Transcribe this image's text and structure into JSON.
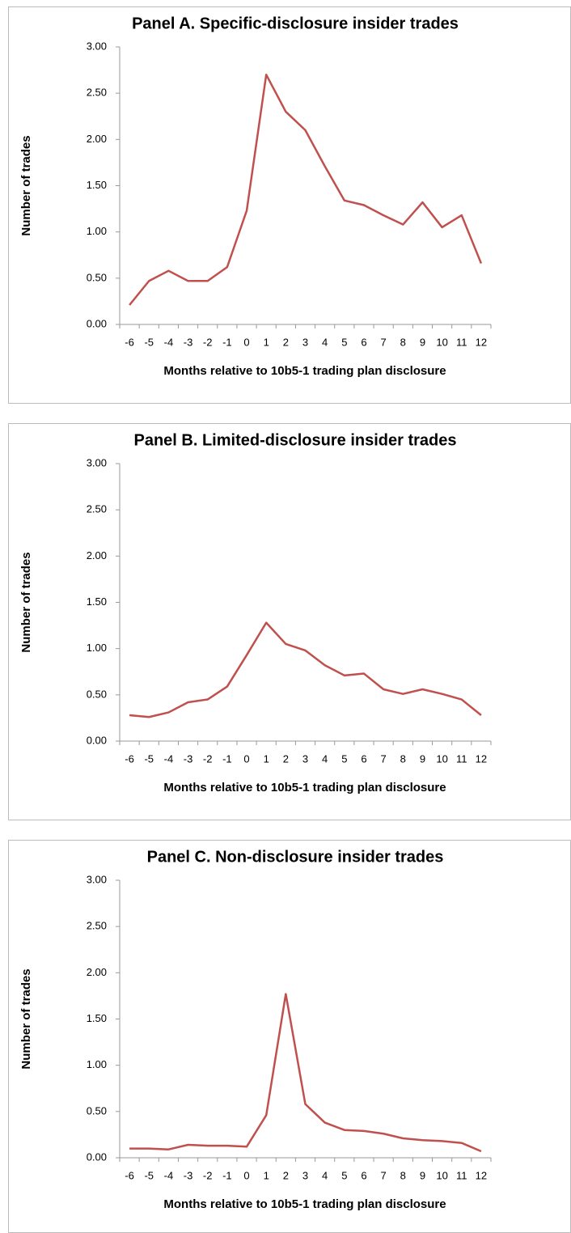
{
  "chart_data": [
    {
      "type": "line",
      "title": "Panel A. Specific-disclosure insider trades",
      "xlabel": "Months relative to 10b5-1 trading plan disclosure",
      "ylabel": "Number of trades",
      "categories": [
        "-6",
        "-5",
        "-4",
        "-3",
        "-2",
        "-1",
        "0",
        "1",
        "2",
        "3",
        "4",
        "5",
        "6",
        "7",
        "8",
        "9",
        "10",
        "11",
        "12"
      ],
      "values": [
        0.21,
        0.47,
        0.58,
        0.47,
        0.47,
        0.62,
        1.23,
        2.7,
        2.3,
        2.1,
        1.71,
        1.34,
        1.29,
        1.18,
        1.08,
        1.32,
        1.05,
        1.18,
        0.66
      ],
      "color": "#c0504d",
      "ylim": [
        0,
        3
      ],
      "yticks": [
        {
          "value": 0,
          "label": "0.00"
        },
        {
          "value": 0.5,
          "label": "0.50"
        },
        {
          "value": 1,
          "label": "1.00"
        },
        {
          "value": 1.5,
          "label": "1.50"
        },
        {
          "value": 2,
          "label": "2.00"
        },
        {
          "value": 2.5,
          "label": "2.50"
        },
        {
          "value": 3,
          "label": "3.00"
        }
      ],
      "grid": false
    },
    {
      "type": "line",
      "title": "Panel B. Limited-disclosure insider trades",
      "xlabel": "Months relative to 10b5-1 trading plan disclosure",
      "ylabel": "Number of trades",
      "categories": [
        "-6",
        "-5",
        "-4",
        "-3",
        "-2",
        "-1",
        "0",
        "1",
        "2",
        "3",
        "4",
        "5",
        "6",
        "7",
        "8",
        "9",
        "10",
        "11",
        "12"
      ],
      "values": [
        0.28,
        0.26,
        0.31,
        0.42,
        0.45,
        0.59,
        0.93,
        1.28,
        1.05,
        0.98,
        0.82,
        0.71,
        0.73,
        0.56,
        0.51,
        0.56,
        0.51,
        0.45,
        0.28
      ],
      "color": "#c0504d",
      "ylim": [
        0,
        3
      ],
      "yticks": [
        {
          "value": 0,
          "label": "0.00"
        },
        {
          "value": 0.5,
          "label": "0.50"
        },
        {
          "value": 1,
          "label": "1.00"
        },
        {
          "value": 1.5,
          "label": "1.50"
        },
        {
          "value": 2,
          "label": "2.00"
        },
        {
          "value": 2.5,
          "label": "2.50"
        },
        {
          "value": 3,
          "label": "3.00"
        }
      ],
      "grid": false
    },
    {
      "type": "line",
      "title": "Panel C. Non-disclosure insider trades",
      "xlabel": "Months relative to 10b5-1 trading plan disclosure",
      "ylabel": "Number of trades",
      "categories": [
        "-6",
        "-5",
        "-4",
        "-3",
        "-2",
        "-1",
        "0",
        "1",
        "2",
        "3",
        "4",
        "5",
        "6",
        "7",
        "8",
        "9",
        "10",
        "11",
        "12"
      ],
      "values": [
        0.1,
        0.1,
        0.09,
        0.14,
        0.13,
        0.13,
        0.12,
        0.46,
        1.77,
        0.58,
        0.38,
        0.3,
        0.29,
        0.26,
        0.21,
        0.19,
        0.18,
        0.16,
        0.07
      ],
      "color": "#c0504d",
      "ylim": [
        0,
        3
      ],
      "yticks": [
        {
          "value": 0,
          "label": "0.00"
        },
        {
          "value": 0.5,
          "label": "0.50"
        },
        {
          "value": 1,
          "label": "1.00"
        },
        {
          "value": 1.5,
          "label": "1.50"
        },
        {
          "value": 2,
          "label": "2.00"
        },
        {
          "value": 2.5,
          "label": "2.50"
        },
        {
          "value": 3,
          "label": "3.00"
        }
      ],
      "grid": false
    }
  ]
}
